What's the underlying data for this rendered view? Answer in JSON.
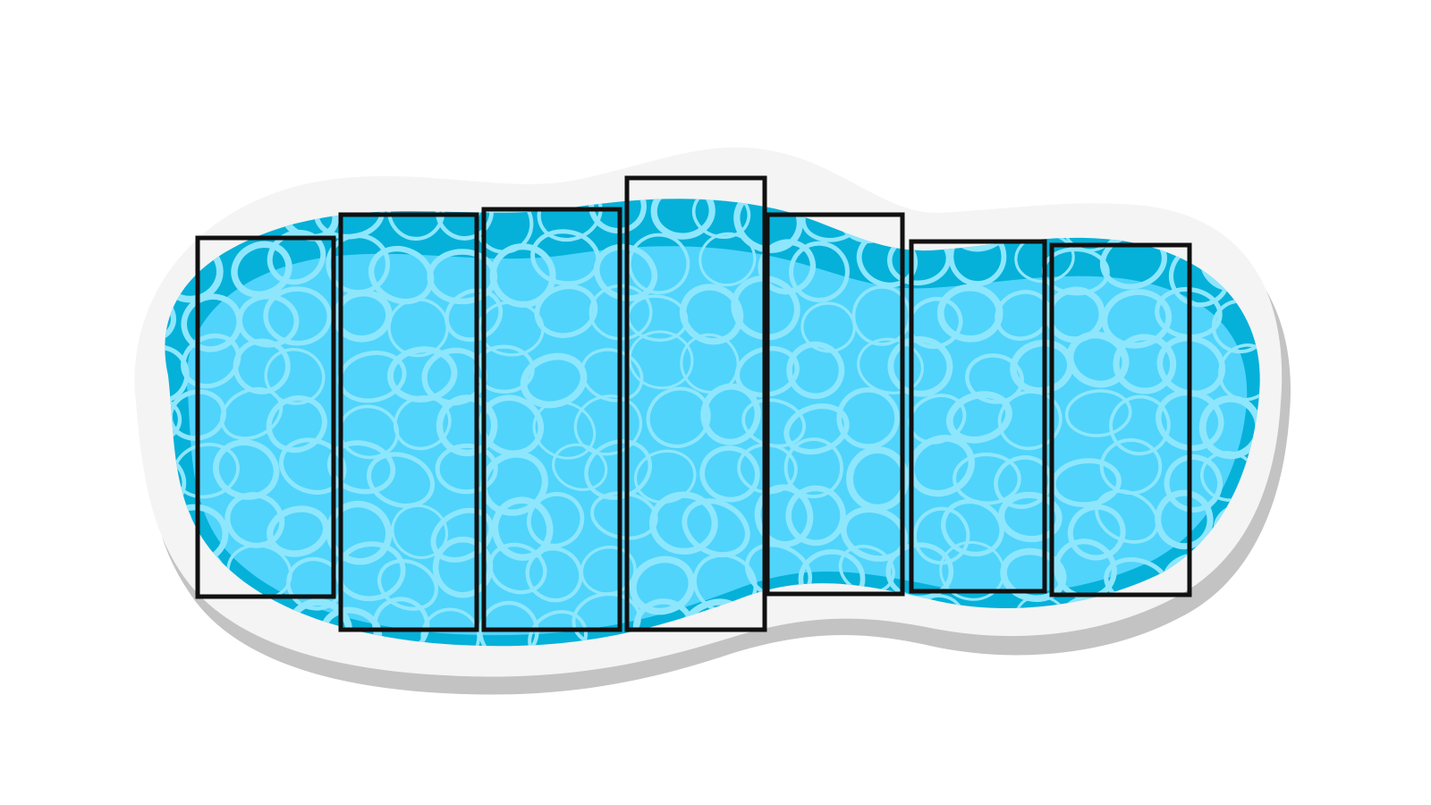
{
  "image": {
    "subject": "pool-water-illustration",
    "background_color": "#ffffff",
    "colors": {
      "shadow": "#c3c3c3",
      "rim": "#f4f4f4",
      "deep_water": "#05b1d9",
      "water": "#50d4fc",
      "caustic_light": "#8ee6fd",
      "frame_stroke": "#111111"
    }
  },
  "panels": {
    "count": 7,
    "style": "black-outlined-rectangles"
  }
}
